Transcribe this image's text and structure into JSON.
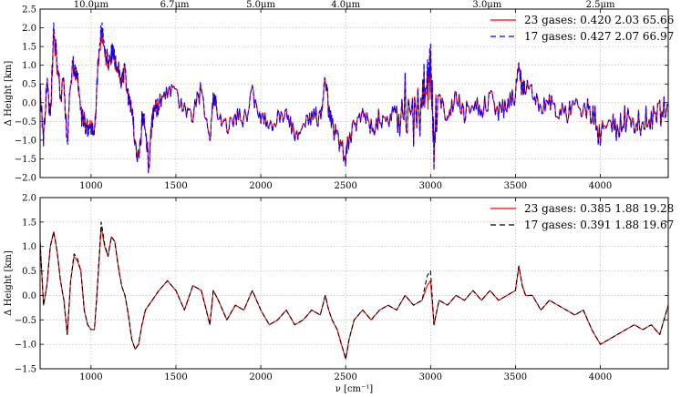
{
  "colors": {
    "series_a": "#ff0000",
    "series_b_top": "#0000ff",
    "series_b_bottom": "#000000",
    "grid": "#b0b0b0"
  },
  "x_axis": {
    "label": "ν [cm⁻¹]",
    "xlim": [
      700,
      4400
    ],
    "ticks": [
      1000,
      1500,
      2000,
      2500,
      3000,
      3500,
      4000
    ],
    "tick_labels": [
      "1000",
      "1500",
      "2000",
      "2500",
      "3000",
      "3500",
      "4000"
    ]
  },
  "wavelength_axis": {
    "positions_wavenumber": [
      1000,
      1492.5,
      2000,
      2500,
      3333.3,
      4000
    ],
    "labels": [
      "10.0μm",
      "6.7μm",
      "5.0μm",
      "4.0μm",
      "3.0μm",
      "2.5μm"
    ]
  },
  "chart_data": [
    {
      "type": "line",
      "ylabel": "Δ Height [km]",
      "ylim": [
        -2.0,
        2.5
      ],
      "yticks": [
        -2.0,
        -1.5,
        -1.0,
        -0.5,
        0.0,
        0.5,
        1.0,
        1.5,
        2.0,
        2.5
      ],
      "ytick_labels": [
        "−2.0",
        "−1.5",
        "−1.0",
        "−0.5",
        "0.0",
        "0.5",
        "1.0",
        "1.5",
        "2.0",
        "2.5"
      ],
      "grid": true,
      "legend_position": "top-right",
      "series": [
        {
          "name": "23 gases: 0.420 2.03 65.66",
          "style": "solid",
          "color": "#ff0000"
        },
        {
          "name": "17 gases: 0.427 2.07 66.97",
          "style": "dashed",
          "color": "#0000ff"
        }
      ],
      "x": [
        700,
        720,
        740,
        760,
        780,
        800,
        820,
        840,
        860,
        880,
        900,
        920,
        940,
        960,
        980,
        1000,
        1020,
        1040,
        1060,
        1080,
        1100,
        1120,
        1140,
        1160,
        1180,
        1200,
        1220,
        1240,
        1260,
        1280,
        1300,
        1320,
        1340,
        1360,
        1380,
        1400,
        1450,
        1500,
        1550,
        1600,
        1650,
        1700,
        1720,
        1750,
        1800,
        1850,
        1900,
        1950,
        2000,
        2050,
        2100,
        2150,
        2200,
        2250,
        2300,
        2350,
        2380,
        2400,
        2420,
        2450,
        2500,
        2520,
        2550,
        2600,
        2650,
        2700,
        2750,
        2800,
        2850,
        2900,
        2950,
        2980,
        3000,
        3020,
        3050,
        3100,
        3150,
        3200,
        3250,
        3300,
        3350,
        3400,
        3450,
        3500,
        3520,
        3540,
        3560,
        3600,
        3650,
        3700,
        3750,
        3800,
        3850,
        3900,
        3950,
        4000,
        4050,
        4100,
        4150,
        4200,
        4250,
        4300,
        4350,
        4400
      ],
      "values": [
        [
          0.3,
          -0.9,
          0.6,
          -0.4,
          1.8,
          1.0,
          0.2,
          0.5,
          -1.1,
          0.7,
          1.0,
          0.6,
          -0.3,
          -0.5,
          -0.7,
          -0.75,
          -0.8,
          0.9,
          1.8,
          1.4,
          1.0,
          1.3,
          1.2,
          0.9,
          0.5,
          0.8,
          0.2,
          -0.2,
          -1.0,
          -1.5,
          -0.5,
          -0.6,
          -1.7,
          -0.4,
          -0.2,
          0.0,
          0.2,
          0.3,
          -0.2,
          -0.3,
          0.4,
          -1.0,
          0.1,
          -0.2,
          -0.6,
          -0.3,
          -0.5,
          0.2,
          -0.4,
          -0.6,
          -0.3,
          -0.4,
          -0.8,
          -0.5,
          -0.3,
          -0.4,
          0.8,
          -0.3,
          -0.6,
          -0.9,
          -1.4,
          -0.9,
          -0.6,
          -0.3,
          -0.7,
          -0.4,
          -0.5,
          -0.2,
          0.1,
          -0.6,
          0.0,
          0.5,
          0.8,
          -1.1,
          0.3,
          -0.4,
          0.1,
          -0.3,
          0.0,
          -0.2,
          0.1,
          -0.2,
          -0.1,
          0.2,
          0.9,
          0.3,
          0.4,
          0.2,
          -0.2,
          0.0,
          -0.2,
          -0.3,
          -0.1,
          -0.3,
          -0.2,
          -0.9,
          -0.5,
          -0.8,
          -0.4,
          -0.6,
          -0.5,
          -0.4,
          -0.3,
          -0.1
        ],
        [
          0.3,
          -0.95,
          0.65,
          -0.4,
          1.95,
          1.1,
          0.2,
          0.55,
          -1.2,
          0.75,
          1.05,
          0.65,
          -0.3,
          -0.55,
          -0.75,
          -0.8,
          -0.85,
          0.95,
          2.0,
          1.5,
          1.05,
          1.35,
          1.25,
          0.95,
          0.5,
          0.85,
          0.2,
          -0.2,
          -1.05,
          -1.55,
          -0.5,
          -0.6,
          -1.75,
          -0.45,
          -0.2,
          0.0,
          0.2,
          0.3,
          -0.2,
          -0.3,
          0.45,
          -1.05,
          0.1,
          -0.2,
          -0.65,
          -0.3,
          -0.5,
          0.2,
          -0.4,
          -0.65,
          -0.3,
          -0.4,
          -0.85,
          -0.5,
          -0.3,
          -0.4,
          0.85,
          -0.3,
          -0.6,
          -0.95,
          -1.45,
          -0.95,
          -0.6,
          -0.3,
          -0.75,
          -0.4,
          -0.5,
          -0.2,
          0.1,
          -0.65,
          0.0,
          0.7,
          1.0,
          -1.2,
          0.3,
          -0.45,
          0.1,
          -0.3,
          0.0,
          -0.2,
          0.1,
          -0.2,
          -0.1,
          0.2,
          0.95,
          0.3,
          0.4,
          0.2,
          -0.2,
          0.0,
          -0.2,
          -0.3,
          -0.1,
          -0.3,
          -0.2,
          -1.0,
          -0.5,
          -0.85,
          -0.4,
          -0.65,
          -0.5,
          -0.45,
          -0.3,
          -0.1
        ]
      ]
    },
    {
      "type": "line",
      "ylabel": "Δ Height [km]",
      "ylim": [
        -1.5,
        2.0
      ],
      "yticks": [
        -1.5,
        -1.0,
        -0.5,
        0.0,
        0.5,
        1.0,
        1.5,
        2.0
      ],
      "ytick_labels": [
        "−1.5",
        "−1.0",
        "−0.5",
        "0.0",
        "0.5",
        "1.0",
        "1.5",
        "2.0"
      ],
      "grid": true,
      "legend_position": "top-right",
      "series": [
        {
          "name": "23 gases: 0.385 1.88 19.28",
          "style": "solid",
          "color": "#ff0000"
        },
        {
          "name": "17 gases: 0.391 1.88 19.67",
          "style": "dashed",
          "color": "#000000"
        }
      ],
      "x": [
        700,
        720,
        740,
        760,
        780,
        800,
        820,
        840,
        860,
        880,
        900,
        920,
        940,
        960,
        980,
        1000,
        1020,
        1040,
        1060,
        1080,
        1100,
        1120,
        1140,
        1160,
        1180,
        1200,
        1220,
        1240,
        1260,
        1280,
        1300,
        1320,
        1340,
        1360,
        1380,
        1400,
        1450,
        1500,
        1550,
        1600,
        1650,
        1700,
        1720,
        1750,
        1800,
        1850,
        1900,
        1950,
        2000,
        2050,
        2100,
        2150,
        2200,
        2250,
        2300,
        2350,
        2380,
        2400,
        2420,
        2450,
        2500,
        2520,
        2550,
        2600,
        2650,
        2700,
        2750,
        2800,
        2850,
        2900,
        2950,
        2980,
        3000,
        3020,
        3050,
        3100,
        3150,
        3200,
        3250,
        3300,
        3350,
        3400,
        3450,
        3500,
        3520,
        3540,
        3560,
        3600,
        3650,
        3700,
        3750,
        3800,
        3850,
        3900,
        3950,
        4000,
        4050,
        4100,
        4150,
        4200,
        4250,
        4300,
        4350,
        4400
      ],
      "values": [
        [
          1.1,
          -0.2,
          0.2,
          1.0,
          1.3,
          0.9,
          0.3,
          -0.1,
          -0.8,
          0.3,
          0.8,
          0.7,
          0.5,
          -0.3,
          -0.6,
          -0.7,
          -0.7,
          0.3,
          1.4,
          1.0,
          0.8,
          1.2,
          1.1,
          0.6,
          0.2,
          0.0,
          -0.4,
          -0.9,
          -1.1,
          -1.0,
          -0.6,
          -0.3,
          -0.2,
          -0.1,
          0.0,
          0.1,
          0.3,
          0.1,
          -0.3,
          0.2,
          0.1,
          -0.6,
          0.1,
          -0.1,
          -0.5,
          -0.2,
          -0.3,
          0.1,
          -0.3,
          -0.6,
          -0.5,
          -0.3,
          -0.6,
          -0.5,
          -0.3,
          -0.4,
          0.0,
          -0.3,
          -0.5,
          -0.7,
          -1.3,
          -0.9,
          -0.5,
          -0.3,
          -0.5,
          -0.3,
          -0.2,
          -0.3,
          0.0,
          -0.2,
          -0.1,
          0.2,
          0.3,
          -0.6,
          -0.1,
          -0.2,
          0.0,
          -0.1,
          0.1,
          -0.1,
          0.1,
          -0.1,
          0.0,
          0.1,
          0.6,
          0.2,
          0.0,
          0.0,
          -0.3,
          -0.1,
          -0.2,
          -0.3,
          -0.4,
          -0.3,
          -0.7,
          -1.0,
          -0.9,
          -0.8,
          -0.7,
          -0.6,
          -0.7,
          -0.6,
          -0.8,
          -0.2
        ],
        [
          1.1,
          -0.2,
          0.2,
          1.0,
          1.3,
          0.9,
          0.3,
          -0.1,
          -0.8,
          0.3,
          0.85,
          0.75,
          0.5,
          -0.3,
          -0.6,
          -0.7,
          -0.7,
          0.3,
          1.5,
          1.05,
          0.8,
          1.2,
          1.1,
          0.6,
          0.2,
          0.0,
          -0.4,
          -0.9,
          -1.1,
          -1.0,
          -0.6,
          -0.3,
          -0.2,
          -0.1,
          0.0,
          0.1,
          0.3,
          0.1,
          -0.3,
          0.2,
          0.1,
          -0.6,
          0.1,
          -0.1,
          -0.5,
          -0.2,
          -0.3,
          0.1,
          -0.3,
          -0.6,
          -0.5,
          -0.3,
          -0.6,
          -0.5,
          -0.3,
          -0.4,
          0.0,
          -0.3,
          -0.5,
          -0.7,
          -1.3,
          -0.9,
          -0.5,
          -0.3,
          -0.5,
          -0.3,
          -0.2,
          -0.3,
          0.0,
          -0.2,
          -0.1,
          0.4,
          0.5,
          -0.6,
          -0.1,
          -0.2,
          0.0,
          -0.1,
          0.1,
          -0.1,
          0.1,
          -0.1,
          0.0,
          0.1,
          0.6,
          0.2,
          0.0,
          0.0,
          -0.3,
          -0.1,
          -0.2,
          -0.3,
          -0.4,
          -0.3,
          -0.7,
          -1.0,
          -0.9,
          -0.8,
          -0.7,
          -0.6,
          -0.7,
          -0.6,
          -0.8,
          -0.2
        ]
      ]
    }
  ]
}
